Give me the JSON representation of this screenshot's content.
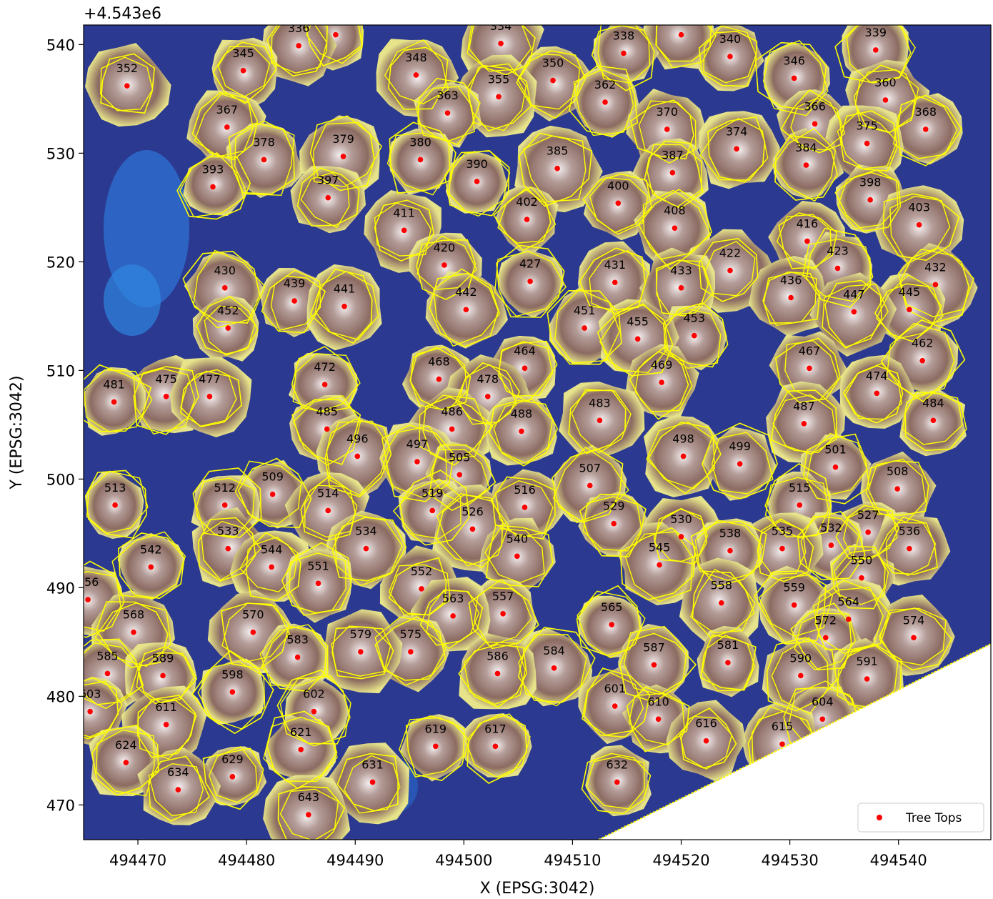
{
  "chart_data": {
    "type": "scatter",
    "background": "canopy height raster with tree crown segmentation polygons",
    "xlabel": "X (EPSG:3042)",
    "ylabel": "Y (EPSG:3042)",
    "y_offset_label": "+4.543e6",
    "xlim": [
      494465,
      494548.5
    ],
    "ylim": [
      466.8,
      541.8
    ],
    "xticks": [
      494470,
      494480,
      494490,
      494500,
      494510,
      494520,
      494530,
      494540
    ],
    "yticks": [
      470,
      480,
      490,
      500,
      510,
      520,
      530,
      540
    ],
    "grid": false,
    "legend": {
      "position": "lower-right",
      "entries": [
        "Tree Tops"
      ]
    },
    "colors": {
      "tree_top": "#ff0000",
      "crown_outline": "#ffff00",
      "water": "#2b3990",
      "canopy": "#8b6b62",
      "crown_high": "#e8e0e0",
      "edge": "#e6e38a"
    },
    "series": [
      {
        "name": "Tree Tops",
        "points": [
          {
            "id": "325",
            "x": 494488.2,
            "y": 540.9
          },
          {
            "id": "332",
            "x": 494520.0,
            "y": 540.9
          },
          {
            "id": "334",
            "x": 494503.4,
            "y": 540.1
          },
          {
            "id": "336",
            "x": 494484.8,
            "y": 539.9
          },
          {
            "id": "338",
            "x": 494514.7,
            "y": 539.2
          },
          {
            "id": "339",
            "x": 494537.9,
            "y": 539.5
          },
          {
            "id": "340",
            "x": 494524.5,
            "y": 538.9
          },
          {
            "id": "345",
            "x": 494479.7,
            "y": 537.6
          },
          {
            "id": "346",
            "x": 494530.4,
            "y": 536.9
          },
          {
            "id": "348",
            "x": 494495.6,
            "y": 537.2
          },
          {
            "id": "350",
            "x": 494508.2,
            "y": 536.7
          },
          {
            "id": "352",
            "x": 494469.0,
            "y": 536.2
          },
          {
            "id": "355",
            "x": 494503.2,
            "y": 535.2
          },
          {
            "id": "360",
            "x": 494538.8,
            "y": 534.9
          },
          {
            "id": "362",
            "x": 494513.0,
            "y": 534.7
          },
          {
            "id": "363",
            "x": 494498.5,
            "y": 533.7
          },
          {
            "id": "366",
            "x": 494532.3,
            "y": 532.7
          },
          {
            "id": "367",
            "x": 494478.2,
            "y": 532.4
          },
          {
            "id": "368",
            "x": 494542.5,
            "y": 532.2
          },
          {
            "id": "370",
            "x": 494518.7,
            "y": 532.2
          },
          {
            "id": "374",
            "x": 494525.1,
            "y": 530.4
          },
          {
            "id": "375",
            "x": 494537.1,
            "y": 530.9
          },
          {
            "id": "378",
            "x": 494481.6,
            "y": 529.4
          },
          {
            "id": "379",
            "x": 494488.9,
            "y": 529.7
          },
          {
            "id": "380",
            "x": 494496.0,
            "y": 529.4
          },
          {
            "id": "384",
            "x": 494531.5,
            "y": 528.9
          },
          {
            "id": "385",
            "x": 494508.6,
            "y": 528.6
          },
          {
            "id": "387",
            "x": 494519.2,
            "y": 528.2
          },
          {
            "id": "390",
            "x": 494501.2,
            "y": 527.4
          },
          {
            "id": "393",
            "x": 494476.9,
            "y": 526.9
          },
          {
            "id": "397",
            "x": 494487.5,
            "y": 525.9
          },
          {
            "id": "398",
            "x": 494537.4,
            "y": 525.7
          },
          {
            "id": "400",
            "x": 494514.2,
            "y": 525.4
          },
          {
            "id": "402",
            "x": 494505.8,
            "y": 523.9
          },
          {
            "id": "403",
            "x": 494541.9,
            "y": 523.4
          },
          {
            "id": "408",
            "x": 494519.4,
            "y": 523.1
          },
          {
            "id": "411",
            "x": 494494.5,
            "y": 522.9
          },
          {
            "id": "416",
            "x": 494531.6,
            "y": 521.9
          },
          {
            "id": "420",
            "x": 494498.2,
            "y": 519.7
          },
          {
            "id": "422",
            "x": 494524.5,
            "y": 519.2
          },
          {
            "id": "423",
            "x": 494534.4,
            "y": 519.4
          },
          {
            "id": "427",
            "x": 494506.1,
            "y": 518.2
          },
          {
            "id": "430",
            "x": 494478.0,
            "y": 517.6
          },
          {
            "id": "431",
            "x": 494513.9,
            "y": 518.1
          },
          {
            "id": "432",
            "x": 494543.4,
            "y": 517.9
          },
          {
            "id": "433",
            "x": 494520.0,
            "y": 517.6
          },
          {
            "id": "436",
            "x": 494530.1,
            "y": 516.7
          },
          {
            "id": "439",
            "x": 494484.4,
            "y": 516.4
          },
          {
            "id": "441",
            "x": 494489.0,
            "y": 515.9
          },
          {
            "id": "442",
            "x": 494500.2,
            "y": 515.6
          },
          {
            "id": "445",
            "x": 494541.0,
            "y": 515.6
          },
          {
            "id": "447",
            "x": 494535.9,
            "y": 515.4
          },
          {
            "id": "451",
            "x": 494511.1,
            "y": 513.9
          },
          {
            "id": "452",
            "x": 494478.3,
            "y": 513.9
          },
          {
            "id": "453",
            "x": 494521.2,
            "y": 513.2
          },
          {
            "id": "455",
            "x": 494516.0,
            "y": 512.9
          },
          {
            "id": "462",
            "x": 494542.2,
            "y": 510.9
          },
          {
            "id": "464",
            "x": 494505.6,
            "y": 510.2
          },
          {
            "id": "467",
            "x": 494531.8,
            "y": 510.2
          },
          {
            "id": "468",
            "x": 494497.7,
            "y": 509.2
          },
          {
            "id": "469",
            "x": 494518.2,
            "y": 508.9
          },
          {
            "id": "472",
            "x": 494487.2,
            "y": 508.7
          },
          {
            "id": "474",
            "x": 494538.0,
            "y": 507.9
          },
          {
            "id": "475",
            "x": 494472.6,
            "y": 507.6
          },
          {
            "id": "477",
            "x": 494476.6,
            "y": 507.6
          },
          {
            "id": "478",
            "x": 494502.2,
            "y": 507.6
          },
          {
            "id": "481",
            "x": 494467.8,
            "y": 507.1
          },
          {
            "id": "483",
            "x": 494512.5,
            "y": 505.4
          },
          {
            "id": "484",
            "x": 494543.2,
            "y": 505.4
          },
          {
            "id": "485",
            "x": 494487.4,
            "y": 504.6
          },
          {
            "id": "486",
            "x": 494498.9,
            "y": 504.6
          },
          {
            "id": "487",
            "x": 494531.3,
            "y": 505.1
          },
          {
            "id": "488",
            "x": 494505.3,
            "y": 504.4
          },
          {
            "id": "496",
            "x": 494490.2,
            "y": 502.1
          },
          {
            "id": "497",
            "x": 494495.7,
            "y": 501.6
          },
          {
            "id": "498",
            "x": 494520.2,
            "y": 502.1
          },
          {
            "id": "499",
            "x": 494525.4,
            "y": 501.4
          },
          {
            "id": "501",
            "x": 494534.2,
            "y": 501.1
          },
          {
            "id": "505",
            "x": 494499.6,
            "y": 500.4
          },
          {
            "id": "507",
            "x": 494511.6,
            "y": 499.4
          },
          {
            "id": "508",
            "x": 494539.9,
            "y": 499.1
          },
          {
            "id": "509",
            "x": 494482.4,
            "y": 498.6
          },
          {
            "id": "512",
            "x": 494478.0,
            "y": 497.6
          },
          {
            "id": "513",
            "x": 494467.9,
            "y": 497.6
          },
          {
            "id": "514",
            "x": 494487.5,
            "y": 497.1
          },
          {
            "id": "515",
            "x": 494530.9,
            "y": 497.6
          },
          {
            "id": "516",
            "x": 494505.6,
            "y": 497.4
          },
          {
            "id": "519",
            "x": 494497.1,
            "y": 497.1
          },
          {
            "id": "526",
            "x": 494500.8,
            "y": 495.4
          },
          {
            "id": "527",
            "x": 494537.2,
            "y": 495.1
          },
          {
            "id": "529",
            "x": 494513.8,
            "y": 495.9
          },
          {
            "id": "530",
            "x": 494520.0,
            "y": 494.7
          },
          {
            "id": "532",
            "x": 494533.8,
            "y": 493.9
          },
          {
            "id": "533",
            "x": 494478.3,
            "y": 493.6
          },
          {
            "id": "534",
            "x": 494491.0,
            "y": 493.6
          },
          {
            "id": "535",
            "x": 494529.3,
            "y": 493.6
          },
          {
            "id": "536",
            "x": 494541.0,
            "y": 493.6
          },
          {
            "id": "538",
            "x": 494524.5,
            "y": 493.4
          },
          {
            "id": "540",
            "x": 494504.9,
            "y": 492.9
          },
          {
            "id": "542",
            "x": 494471.2,
            "y": 491.9
          },
          {
            "id": "544",
            "x": 494482.3,
            "y": 491.9
          },
          {
            "id": "545",
            "x": 494518.0,
            "y": 492.1
          },
          {
            "id": "550",
            "x": 494536.6,
            "y": 490.9
          },
          {
            "id": "551",
            "x": 494486.6,
            "y": 490.4
          },
          {
            "id": "552",
            "x": 494496.1,
            "y": 489.9
          },
          {
            "id": "556",
            "x": 494465.4,
            "y": 488.9
          },
          {
            "id": "557",
            "x": 494503.6,
            "y": 487.6
          },
          {
            "id": "558",
            "x": 494523.7,
            "y": 488.6
          },
          {
            "id": "559",
            "x": 494530.4,
            "y": 488.4
          },
          {
            "id": "563",
            "x": 494499.0,
            "y": 487.4
          },
          {
            "id": "564",
            "x": 494535.4,
            "y": 487.1
          },
          {
            "id": "565",
            "x": 494513.6,
            "y": 486.6
          },
          {
            "id": "568",
            "x": 494469.6,
            "y": 485.9
          },
          {
            "id": "570",
            "x": 494480.6,
            "y": 485.9
          },
          {
            "id": "572",
            "x": 494533.3,
            "y": 485.4
          },
          {
            "id": "574",
            "x": 494541.4,
            "y": 485.4
          },
          {
            "id": "575",
            "x": 494495.1,
            "y": 484.1
          },
          {
            "id": "579",
            "x": 494490.5,
            "y": 484.1
          },
          {
            "id": "581",
            "x": 494524.3,
            "y": 483.1
          },
          {
            "id": "583",
            "x": 494484.7,
            "y": 483.6
          },
          {
            "id": "584",
            "x": 494508.3,
            "y": 482.6
          },
          {
            "id": "585",
            "x": 494467.2,
            "y": 482.1
          },
          {
            "id": "586",
            "x": 494503.1,
            "y": 482.1
          },
          {
            "id": "587",
            "x": 494517.5,
            "y": 482.9
          },
          {
            "id": "589",
            "x": 494472.3,
            "y": 481.9
          },
          {
            "id": "590",
            "x": 494531.0,
            "y": 481.9
          },
          {
            "id": "591",
            "x": 494537.1,
            "y": 481.6
          },
          {
            "id": "598",
            "x": 494478.7,
            "y": 480.4
          },
          {
            "id": "601",
            "x": 494513.9,
            "y": 479.1
          },
          {
            "id": "602",
            "x": 494486.2,
            "y": 478.6
          },
          {
            "id": "603",
            "x": 494465.6,
            "y": 478.6
          },
          {
            "id": "604",
            "x": 494533.0,
            "y": 477.9
          },
          {
            "id": "610",
            "x": 494517.9,
            "y": 477.9
          },
          {
            "id": "611",
            "x": 494472.6,
            "y": 477.4
          },
          {
            "id": "615",
            "x": 494529.3,
            "y": 475.6
          },
          {
            "id": "616",
            "x": 494522.3,
            "y": 475.9
          },
          {
            "id": "617",
            "x": 494502.9,
            "y": 475.4
          },
          {
            "id": "619",
            "x": 494497.4,
            "y": 475.4
          },
          {
            "id": "621",
            "x": 494485.0,
            "y": 475.1
          },
          {
            "id": "624",
            "x": 494468.9,
            "y": 473.9
          },
          {
            "id": "629",
            "x": 494478.7,
            "y": 472.6
          },
          {
            "id": "631",
            "x": 494491.6,
            "y": 472.1
          },
          {
            "id": "632",
            "x": 494514.1,
            "y": 472.1
          },
          {
            "id": "634",
            "x": 494473.7,
            "y": 471.4
          },
          {
            "id": "643",
            "x": 494485.7,
            "y": 469.1
          }
        ]
      }
    ]
  }
}
